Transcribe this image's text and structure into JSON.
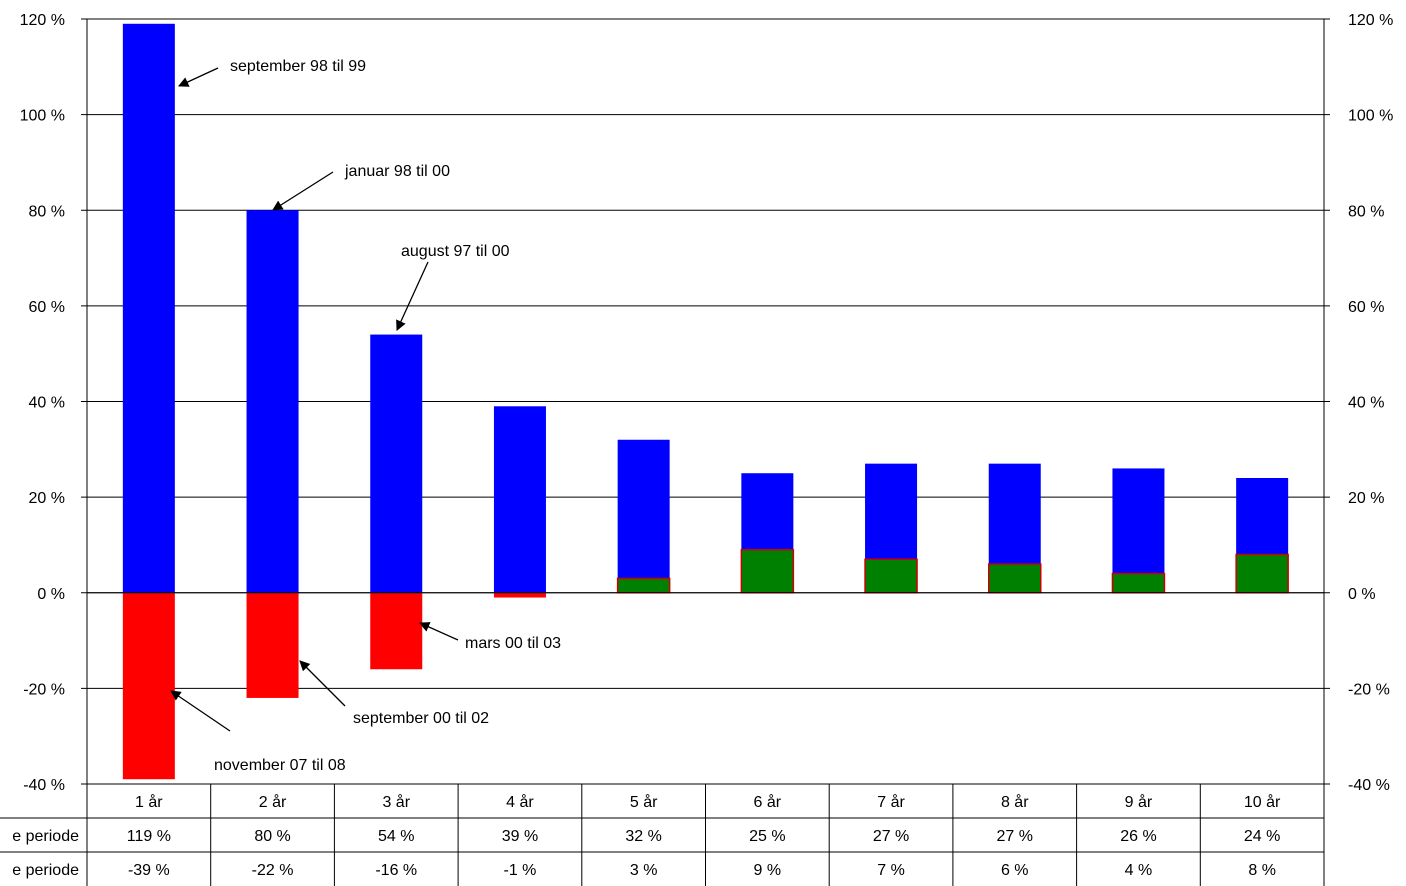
{
  "chart_data": {
    "type": "bar",
    "categories": [
      "1 år",
      "2 år",
      "3 år",
      "4 år",
      "5 år",
      "6 år",
      "7 år",
      "8 år",
      "9 år",
      "10 år"
    ],
    "ylim": [
      -40,
      120
    ],
    "yticks": [
      120,
      100,
      80,
      60,
      40,
      20,
      0,
      -20,
      -40
    ],
    "tick_suffix": " %",
    "grid": true,
    "series": [
      {
        "name": "Beste periode",
        "color": "#0000ff",
        "values": [
          119,
          80,
          54,
          39,
          32,
          25,
          27,
          27,
          26,
          24
        ]
      },
      {
        "name": "Dårligste periode",
        "color_negative": "#ff0000",
        "color_positive": "#008000",
        "values": [
          -39,
          -22,
          -16,
          -1,
          3,
          9,
          7,
          6,
          4,
          8
        ]
      }
    ],
    "table": {
      "row_labels": [
        "e periode",
        "e periode"
      ],
      "rows": [
        [
          "119 %",
          "80 %",
          "54 %",
          "39 %",
          "32 %",
          "25 %",
          "27 %",
          "27 %",
          "26 %",
          "24 %"
        ],
        [
          "-39 %",
          "-22 %",
          "-16 %",
          "-1 %",
          "3 %",
          "9 %",
          "7 %",
          "6 %",
          "4 %",
          "8 %"
        ]
      ]
    },
    "annotations": [
      {
        "text": "september 98 til 99",
        "category": "1 år",
        "value": 119
      },
      {
        "text": "januar 98 til 00",
        "category": "2 år",
        "value": 80
      },
      {
        "text": "august 97 til 00",
        "category": "3 år",
        "value": 54
      },
      {
        "text": "mars 00  til 03",
        "category": "3 år",
        "value": -16
      },
      {
        "text": "september 00 til 02",
        "category": "2 år",
        "value": -22
      },
      {
        "text": "november 07 til 08",
        "category": "1 år",
        "value": -39
      }
    ]
  }
}
